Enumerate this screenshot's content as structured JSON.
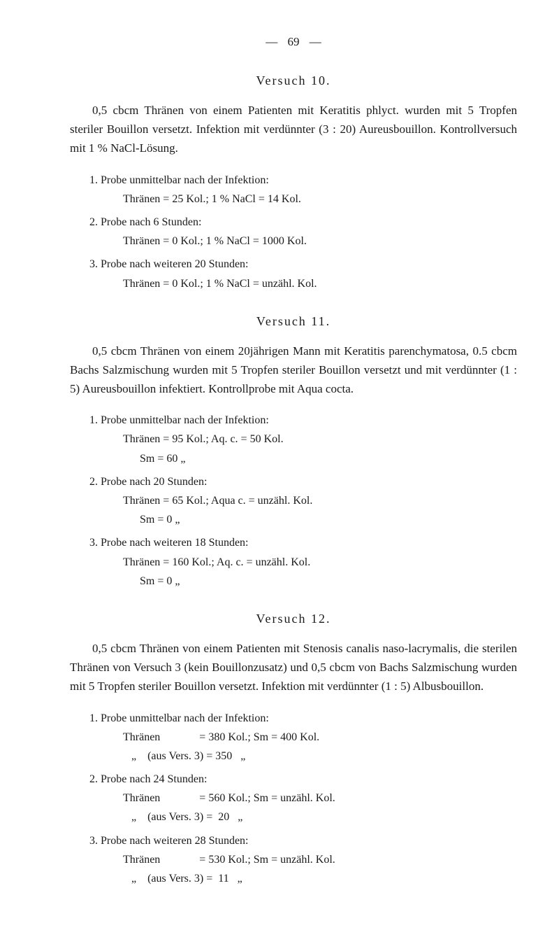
{
  "pageNumber": "69",
  "versuch10": {
    "title": "Versuch 10.",
    "paragraph": "0,5 cbcm Thränen von einem Patienten mit Keratitis phlyct. wurden mit 5 Tropfen steriler Bouillon versetzt. Infektion mit verdünnter (3 : 20) Aureusbouillon. Kontrollversuch mit 1 % NaCl-Lösung.",
    "probe1_l1": "1. Probe unmittelbar nach der Infektion:",
    "probe1_l2": "Thränen = 25 Kol.; 1 % NaCl = 14 Kol.",
    "probe2_l1": "2. Probe nach 6 Stunden:",
    "probe2_l2": "Thränen = 0 Kol.; 1 % NaCl = 1000 Kol.",
    "probe3_l1": "3. Probe nach weiteren 20 Stunden:",
    "probe3_l2": "Thränen = 0 Kol.; 1 % NaCl = unzähl. Kol."
  },
  "versuch11": {
    "title": "Versuch 11.",
    "paragraph": "0,5 cbcm Thränen von einem 20jährigen Mann mit Keratitis parenchymatosa, 0.5 cbcm Bachs Salzmischung wurden mit 5 Tropfen steriler Bouillon versetzt und mit verdünnter (1 : 5) Aureusbouillon infektiert. Kontrollprobe mit Aqua cocta.",
    "probe1_l1": "1. Probe unmittelbar nach der Infektion:",
    "probe1_l2": "Thränen = 95 Kol.; Aq. c. = 50 Kol.",
    "probe1_l3": "Sm = 60   „",
    "probe2_l1": "2. Probe nach 20 Stunden:",
    "probe2_l2": "Thränen = 65 Kol.; Aqua c. = unzähl. Kol.",
    "probe2_l3": "Sm =  0   „",
    "probe3_l1": "3. Probe nach weiteren 18 Stunden:",
    "probe3_l2": "Thränen = 160 Kol.; Aq. c. = unzähl. Kol.",
    "probe3_l3": "Sm =   0   „"
  },
  "versuch12": {
    "title": "Versuch 12.",
    "paragraph": "0,5 cbcm Thränen von einem Patienten mit Stenosis canalis naso-lacrymalis, die sterilen Thränen von Versuch 3 (kein Bouillonzusatz) und 0,5 cbcm von Bachs Salzmischung wurden mit 5 Tropfen steriler Bouillon versetzt. Infektion mit verdünnter (1 : 5) Albusbouillon.",
    "probe1_l1": "1. Probe unmittelbar nach der Infektion:",
    "probe1_l2": "Thränen              = 380 Kol.; Sm = 400 Kol.",
    "probe1_l3": "   „    (aus Vers. 3) = 350   „",
    "probe2_l1": "2. Probe nach 24 Stunden:",
    "probe2_l2": "Thränen              = 560 Kol.; Sm = unzähl. Kol.",
    "probe2_l3": "   „    (aus Vers. 3) =  20   „",
    "probe3_l1": "3. Probe nach weiteren 28 Stunden:",
    "probe3_l2": "Thränen              = 530 Kol.; Sm = unzähl. Kol.",
    "probe3_l3": "   „    (aus Vers. 3) =  11   „"
  }
}
